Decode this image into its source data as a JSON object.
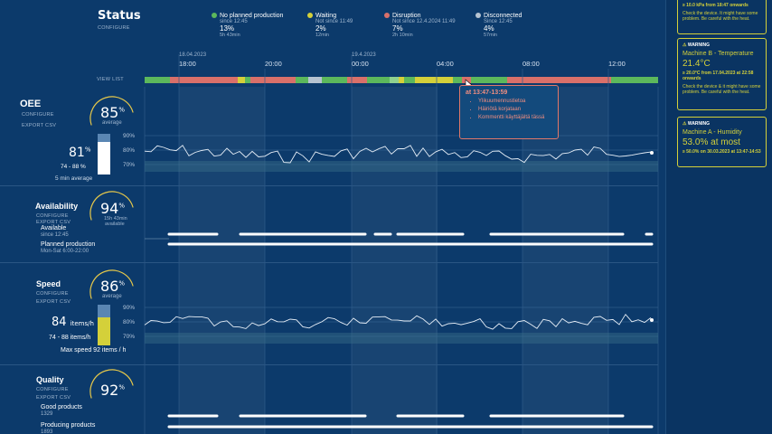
{
  "header": {
    "title": "Status",
    "configure": "CONFIGURE",
    "legend": [
      {
        "label": "No planned production",
        "since": "since 12:45",
        "pct": "13%",
        "dur": "5h 43min",
        "color": "#5cb85c"
      },
      {
        "label": "Waiting",
        "since": "Not since 11:49",
        "pct": "2%",
        "dur": "12min",
        "color": "#d4d03a"
      },
      {
        "label": "Disruption",
        "since": "Not since 12.4.2024 11:49",
        "pct": "7%",
        "dur": "2h 10min",
        "color": "#d9706a"
      },
      {
        "label": "Disconnected",
        "since": "Since 12:45",
        "pct": "4%",
        "dur": "57min",
        "color": "#b6c3d1"
      }
    ]
  },
  "timeline": {
    "dates": [
      "18.04.2023",
      "19.4.2023"
    ],
    "ticks": [
      "18:00",
      "20:00",
      "00:00",
      "04:00",
      "08:00",
      "12:00"
    ],
    "view_list": "VIEW LIST"
  },
  "tooltip": {
    "time": "at 13:47-13:59",
    "items": [
      "Ylikuumennustietoa",
      "Häiriötä korjataan",
      "Kommentti käyttäjältä tässä"
    ]
  },
  "oee": {
    "title": "OEE",
    "configure": "CONFIGURE",
    "export": "EXPORT CSV",
    "gauge_value": "85",
    "gauge_unit": "%",
    "gauge_sub": "average",
    "current_value": "81",
    "current_unit": "%",
    "range": "74 - 88 %",
    "avg": "5 min average",
    "bar_fill": 0.81,
    "axis": [
      "90%",
      "80%",
      "70%"
    ]
  },
  "availability": {
    "title": "Availability",
    "configure": "CONFIGURE",
    "export": "EXPORT CSV",
    "gauge_value": "94",
    "gauge_unit": "%",
    "gauge_dur": "15h 43min",
    "gauge_sub": "available",
    "available_label": "Available",
    "available_since": "since 12:45",
    "planned_label": "Planned production",
    "planned_time": "Mon-Sat 6:00-22:00"
  },
  "speed": {
    "title": "Speed",
    "configure": "CONFIGURE",
    "export": "EXPORT CSV",
    "gauge_value": "86",
    "gauge_unit": "%",
    "gauge_sub": "average",
    "current_value": "84",
    "current_unit": "items/h",
    "range": "74 - 88 items/h",
    "max": "Max speed 92 items / h",
    "bar_fill": 0.7,
    "axis": [
      "90%",
      "80%",
      "70%"
    ]
  },
  "quality": {
    "title": "Quality",
    "configure": "CONFIGURE",
    "export": "EXPORT CSV",
    "gauge_value": "92",
    "gauge_unit": "%",
    "good_label": "Good products",
    "good_value": "1329",
    "producing_label": "Producing products",
    "producing_value": "1893"
  },
  "warnings": [
    {
      "header": "",
      "machine": "",
      "value": "",
      "threshold": "≥ 10.0 kPa from 18:47 onwards",
      "desc": "Check the device. It might have some problem. Be careful with the heat."
    },
    {
      "header": "WARNING",
      "machine": "Machine B - Temperature",
      "value": "21.4°C",
      "threshold": "≥ 20.0°C from 17.04.2023 at 22:58 onwards",
      "desc": "Check the device & it might have some problem. Be careful with the heat."
    },
    {
      "header": "WARNING",
      "machine": "Machine A - Humidity",
      "value": "53.0% at most",
      "threshold": "≥ 50.0% on 30.03.2023 at 13:47-14:53",
      "desc": ""
    }
  ]
}
